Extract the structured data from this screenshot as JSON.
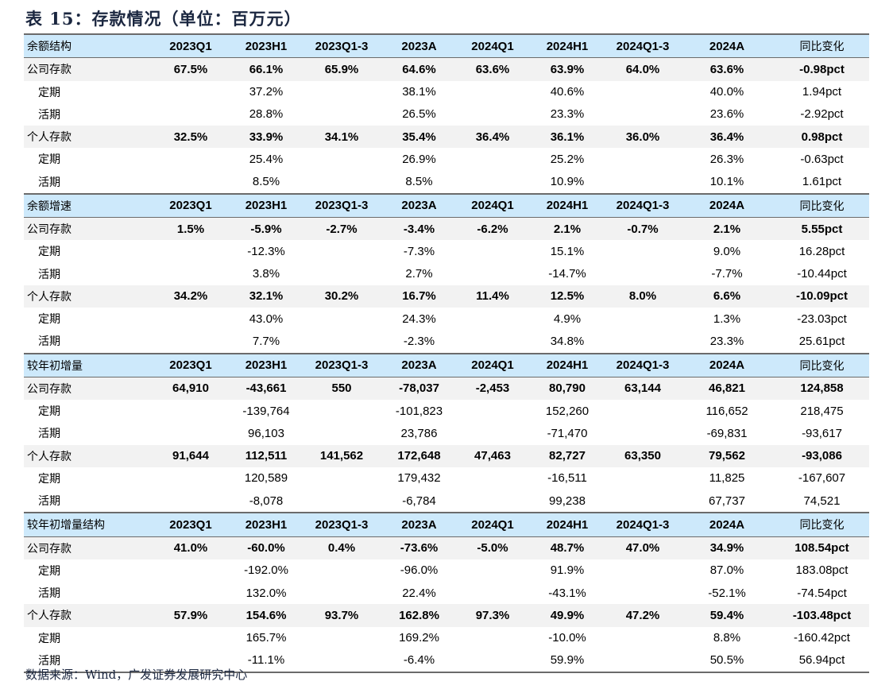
{
  "title": "表 15：存款情况（单位：百万元）",
  "columns": [
    "2023Q1",
    "2023H1",
    "2023Q1-3",
    "2023A",
    "2024Q1",
    "2024H1",
    "2024Q1-3",
    "2024A",
    "同比变化"
  ],
  "sections": [
    {
      "header": "余额结构",
      "rows": [
        {
          "label": "公司存款",
          "type": "main",
          "values": [
            "67.5%",
            "66.1%",
            "65.9%",
            "64.6%",
            "63.6%",
            "63.9%",
            "64.0%",
            "63.6%",
            "-0.98pct"
          ]
        },
        {
          "label": "定期",
          "type": "sub",
          "values": [
            "",
            "37.2%",
            "",
            "38.1%",
            "",
            "40.6%",
            "",
            "40.0%",
            "1.94pct"
          ]
        },
        {
          "label": "活期",
          "type": "sub",
          "values": [
            "",
            "28.8%",
            "",
            "26.5%",
            "",
            "23.3%",
            "",
            "23.6%",
            "-2.92pct"
          ]
        },
        {
          "label": "个人存款",
          "type": "main",
          "values": [
            "32.5%",
            "33.9%",
            "34.1%",
            "35.4%",
            "36.4%",
            "36.1%",
            "36.0%",
            "36.4%",
            "0.98pct"
          ]
        },
        {
          "label": "定期",
          "type": "sub",
          "values": [
            "",
            "25.4%",
            "",
            "26.9%",
            "",
            "25.2%",
            "",
            "26.3%",
            "-0.63pct"
          ]
        },
        {
          "label": "活期",
          "type": "sub",
          "values": [
            "",
            "8.5%",
            "",
            "8.5%",
            "",
            "10.9%",
            "",
            "10.1%",
            "1.61pct"
          ]
        }
      ]
    },
    {
      "header": "余额增速",
      "rows": [
        {
          "label": "公司存款",
          "type": "main",
          "values": [
            "1.5%",
            "-5.9%",
            "-2.7%",
            "-3.4%",
            "-6.2%",
            "2.1%",
            "-0.7%",
            "2.1%",
            "5.55pct"
          ]
        },
        {
          "label": "定期",
          "type": "sub",
          "values": [
            "",
            "-12.3%",
            "",
            "-7.3%",
            "",
            "15.1%",
            "",
            "9.0%",
            "16.28pct"
          ]
        },
        {
          "label": "活期",
          "type": "sub",
          "values": [
            "",
            "3.8%",
            "",
            "2.7%",
            "",
            "-14.7%",
            "",
            "-7.7%",
            "-10.44pct"
          ]
        },
        {
          "label": "个人存款",
          "type": "main",
          "values": [
            "34.2%",
            "32.1%",
            "30.2%",
            "16.7%",
            "11.4%",
            "12.5%",
            "8.0%",
            "6.6%",
            "-10.09pct"
          ]
        },
        {
          "label": "定期",
          "type": "sub",
          "values": [
            "",
            "43.0%",
            "",
            "24.3%",
            "",
            "4.9%",
            "",
            "1.3%",
            "-23.03pct"
          ]
        },
        {
          "label": "活期",
          "type": "sub",
          "values": [
            "",
            "7.7%",
            "",
            "-2.3%",
            "",
            "34.8%",
            "",
            "23.3%",
            "25.61pct"
          ]
        }
      ]
    },
    {
      "header": "较年初增量",
      "rows": [
        {
          "label": "公司存款",
          "type": "main",
          "values": [
            "64,910",
            "-43,661",
            "550",
            "-78,037",
            "-2,453",
            "80,790",
            "63,144",
            "46,821",
            "124,858"
          ]
        },
        {
          "label": "定期",
          "type": "sub",
          "values": [
            "",
            "-139,764",
            "",
            "-101,823",
            "",
            "152,260",
            "",
            "116,652",
            "218,475"
          ]
        },
        {
          "label": "活期",
          "type": "sub",
          "values": [
            "",
            "96,103",
            "",
            "23,786",
            "",
            "-71,470",
            "",
            "-69,831",
            "-93,617"
          ]
        },
        {
          "label": "个人存款",
          "type": "main",
          "values": [
            "91,644",
            "112,511",
            "141,562",
            "172,648",
            "47,463",
            "82,727",
            "63,350",
            "79,562",
            "-93,086"
          ]
        },
        {
          "label": "定期",
          "type": "sub",
          "values": [
            "",
            "120,589",
            "",
            "179,432",
            "",
            "-16,511",
            "",
            "11,825",
            "-167,607"
          ]
        },
        {
          "label": "活期",
          "type": "sub",
          "values": [
            "",
            "-8,078",
            "",
            "-6,784",
            "",
            "99,238",
            "",
            "67,737",
            "74,521"
          ]
        }
      ]
    },
    {
      "header": "较年初增量结构",
      "rows": [
        {
          "label": "公司存款",
          "type": "main",
          "values": [
            "41.0%",
            "-60.0%",
            "0.4%",
            "-73.6%",
            "-5.0%",
            "48.7%",
            "47.0%",
            "34.9%",
            "108.54pct"
          ]
        },
        {
          "label": "定期",
          "type": "sub",
          "values": [
            "",
            "-192.0%",
            "",
            "-96.0%",
            "",
            "91.9%",
            "",
            "87.0%",
            "183.08pct"
          ]
        },
        {
          "label": "活期",
          "type": "sub",
          "values": [
            "",
            "132.0%",
            "",
            "22.4%",
            "",
            "-43.1%",
            "",
            "-52.1%",
            "-74.54pct"
          ]
        },
        {
          "label": "个人存款",
          "type": "main",
          "values": [
            "57.9%",
            "154.6%",
            "93.7%",
            "162.8%",
            "97.3%",
            "49.9%",
            "47.2%",
            "59.4%",
            "-103.48pct"
          ]
        },
        {
          "label": "定期",
          "type": "sub",
          "values": [
            "",
            "165.7%",
            "",
            "169.2%",
            "",
            "-10.0%",
            "",
            "8.8%",
            "-160.42pct"
          ]
        },
        {
          "label": "活期",
          "type": "sub",
          "values": [
            "",
            "-11.1%",
            "",
            "-6.4%",
            "",
            "59.9%",
            "",
            "50.5%",
            "56.94pct"
          ]
        }
      ]
    }
  ],
  "source": "数据来源：Wind，广发证券发展研究中心",
  "colors": {
    "header_bg": "#cde9fb",
    "main_row_bg": "#f2f2f2",
    "title": "#1b2740"
  }
}
